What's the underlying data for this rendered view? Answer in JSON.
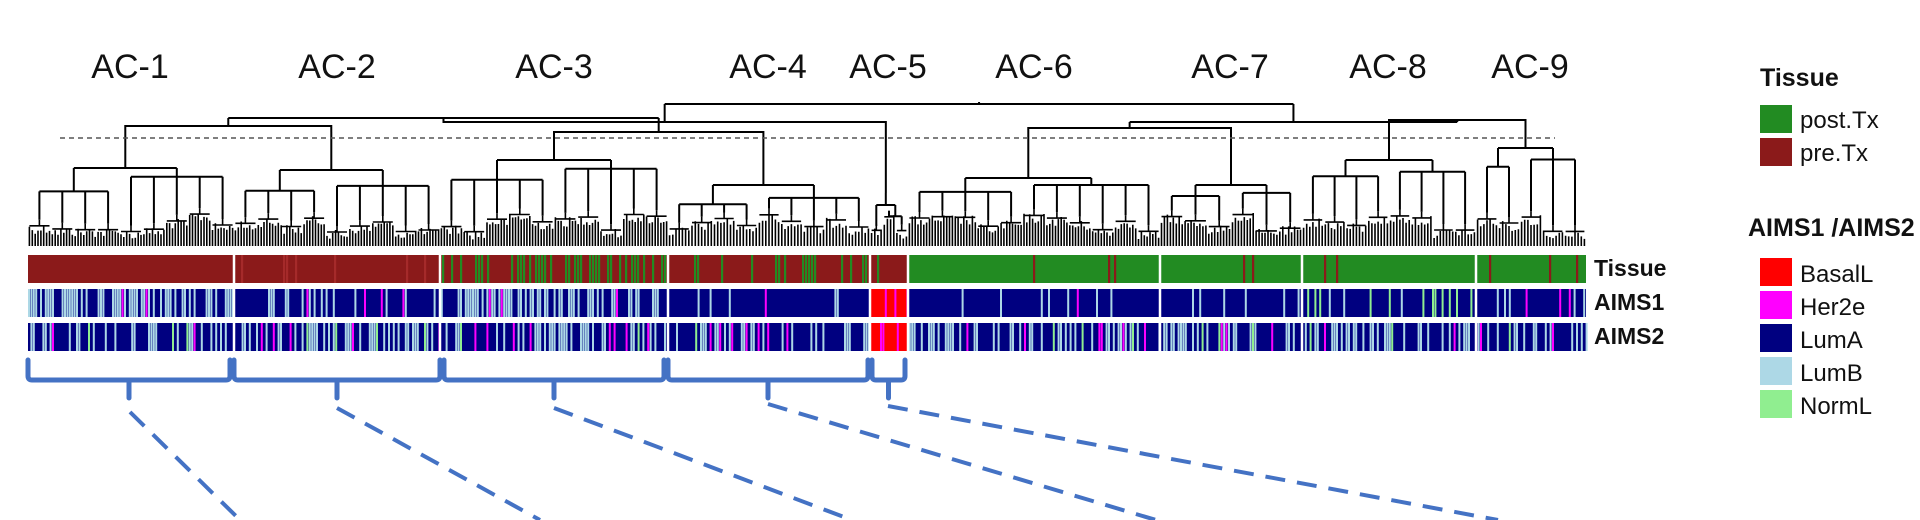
{
  "clusters": [
    "AC-1",
    "AC-2",
    "AC-3",
    "AC-4",
    "AC-5",
    "AC-6",
    "AC-7",
    "AC-8",
    "AC-9"
  ],
  "row_labels": {
    "tissue": "Tissue",
    "aims1": "AIMS1",
    "aims2": "AIMS2"
  },
  "legend": {
    "tissue_title": "Tissue",
    "tissue_items": [
      {
        "label": "post.Tx",
        "color": "#228b22"
      },
      {
        "label": "pre.Tx",
        "color": "#8b1a1a"
      }
    ],
    "aims_title": "AIMS1 /AIMS2",
    "aims_items": [
      {
        "label": "BasalL",
        "color": "#ff0000"
      },
      {
        "label": "Her2e",
        "color": "#ff00ff"
      },
      {
        "label": "LumA",
        "color": "#000080"
      },
      {
        "label": "LumB",
        "color": "#add8e6"
      },
      {
        "label": "NormL",
        "color": "#90ee90"
      }
    ]
  },
  "colors": {
    "dendrogram": "#000000",
    "bracket": "#4472c4",
    "cut_line": "#555555"
  }
}
